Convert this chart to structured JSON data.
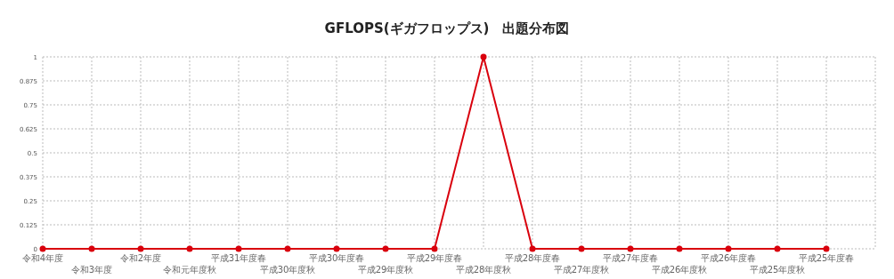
{
  "chart_data": {
    "type": "line",
    "title": "GFLOPS(ギガフロップス)　出題分布図",
    "categories": [
      "令和4年度",
      "令和3年度",
      "令和2年度",
      "令和元年度秋",
      "平成31年度春",
      "平成30年度秋",
      "平成30年度春",
      "平成29年度秋",
      "平成29年度春",
      "平成28年度秋",
      "平成28年度春",
      "平成27年度秋",
      "平成27年度春",
      "平成26年度秋",
      "平成26年度春",
      "平成25年度秋",
      "平成25年度春"
    ],
    "values": [
      0,
      0,
      0,
      0,
      0,
      0,
      0,
      0,
      0,
      1,
      0,
      0,
      0,
      0,
      0,
      0,
      0
    ],
    "color": "#d9000d",
    "ylim": [
      0,
      1
    ],
    "yticks": [
      0,
      0.125,
      0.25,
      0.375,
      0.5,
      0.625,
      0.75,
      0.875,
      1
    ],
    "grid": true,
    "marker": "circle",
    "line_style": "solid"
  }
}
